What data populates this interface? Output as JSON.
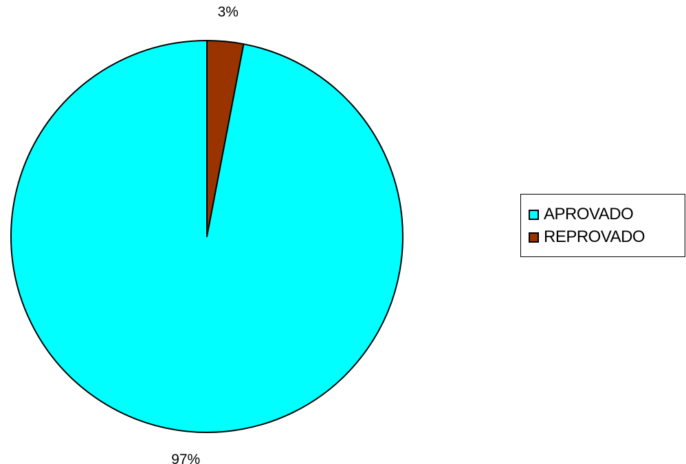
{
  "chart_data": {
    "type": "pie",
    "title": "",
    "categories": [
      "APROVADO",
      "REPROVADO"
    ],
    "values": [
      97,
      3
    ],
    "data_labels": [
      "97%",
      "3%"
    ],
    "colors": [
      "#00ffff",
      "#993300"
    ],
    "start_angle_deg": 0,
    "direction": "counterclockwise",
    "legend_position": "right"
  }
}
